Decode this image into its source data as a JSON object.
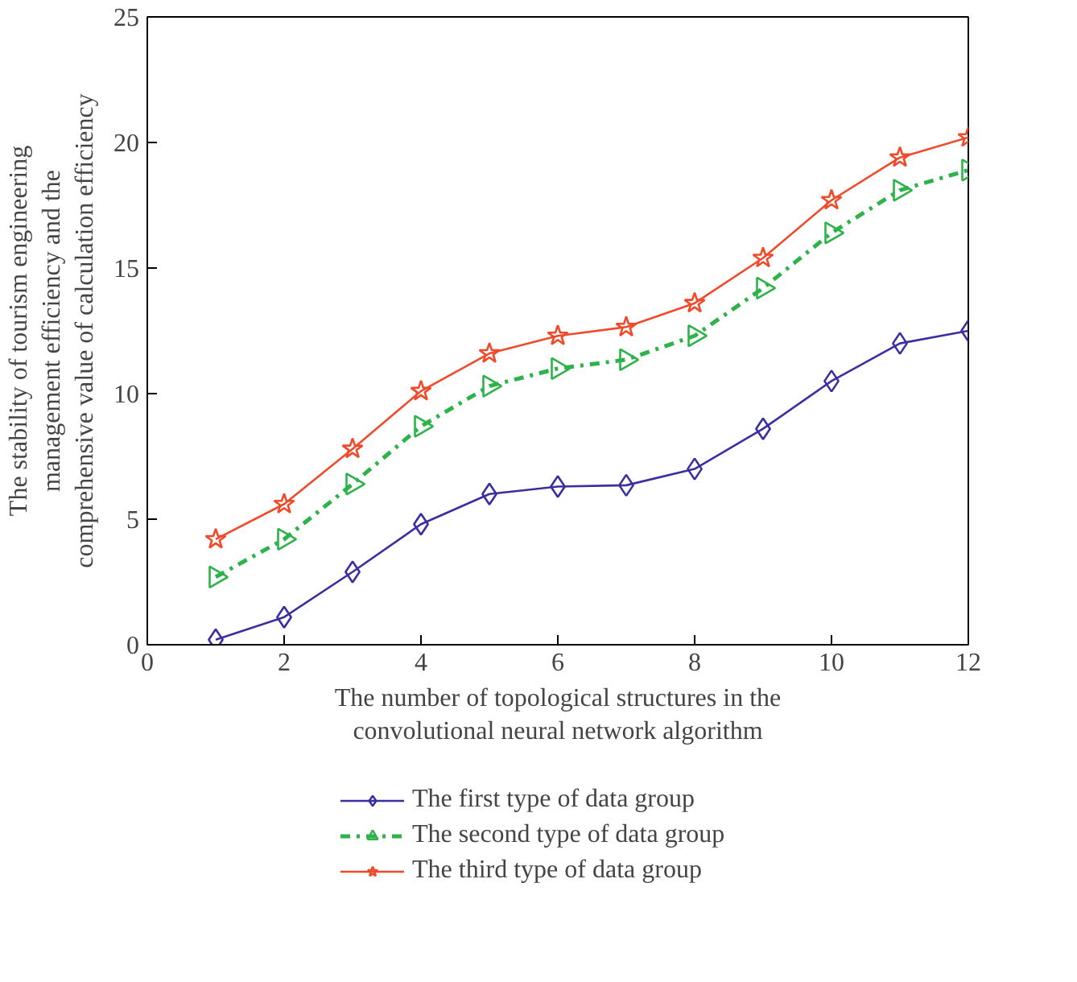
{
  "chart_data": {
    "type": "line",
    "xlabel": "The number of topological structures in the\nconvolutional neural network algorithm",
    "ylabel": "The stability of tourism engineering\nmanagement efficiency and the\ncomprehensive value of calculation efficiency",
    "x": [
      1,
      2,
      3,
      4,
      5,
      6,
      7,
      8,
      9,
      10,
      11,
      12
    ],
    "xlim": [
      0,
      12
    ],
    "xticks": [
      0,
      2,
      4,
      6,
      8,
      10,
      12
    ],
    "ylim": [
      0,
      25
    ],
    "yticks": [
      0,
      5,
      10,
      15,
      20,
      25
    ],
    "grid": false,
    "legend": "bottom",
    "series": [
      {
        "name": "The first type of data group",
        "color": "#3a2fa0",
        "marker": "diamond",
        "line_style": "solid",
        "values": [
          0.2,
          1.1,
          2.9,
          4.8,
          6.0,
          6.3,
          6.35,
          7.0,
          8.6,
          10.5,
          12.0,
          12.5
        ]
      },
      {
        "name": "The second type of data group",
        "color": "#2db34a",
        "marker": "triangle",
        "line_style": "dashdot",
        "values": [
          2.7,
          4.2,
          6.4,
          8.7,
          10.3,
          11.0,
          11.35,
          12.3,
          14.2,
          16.4,
          18.1,
          18.9
        ]
      },
      {
        "name": "The third type of data group",
        "color": "#f04a2a",
        "marker": "star",
        "line_style": "solid",
        "values": [
          4.2,
          5.6,
          7.8,
          10.1,
          11.6,
          12.3,
          12.65,
          13.6,
          15.4,
          17.7,
          19.4,
          20.2
        ]
      }
    ]
  }
}
